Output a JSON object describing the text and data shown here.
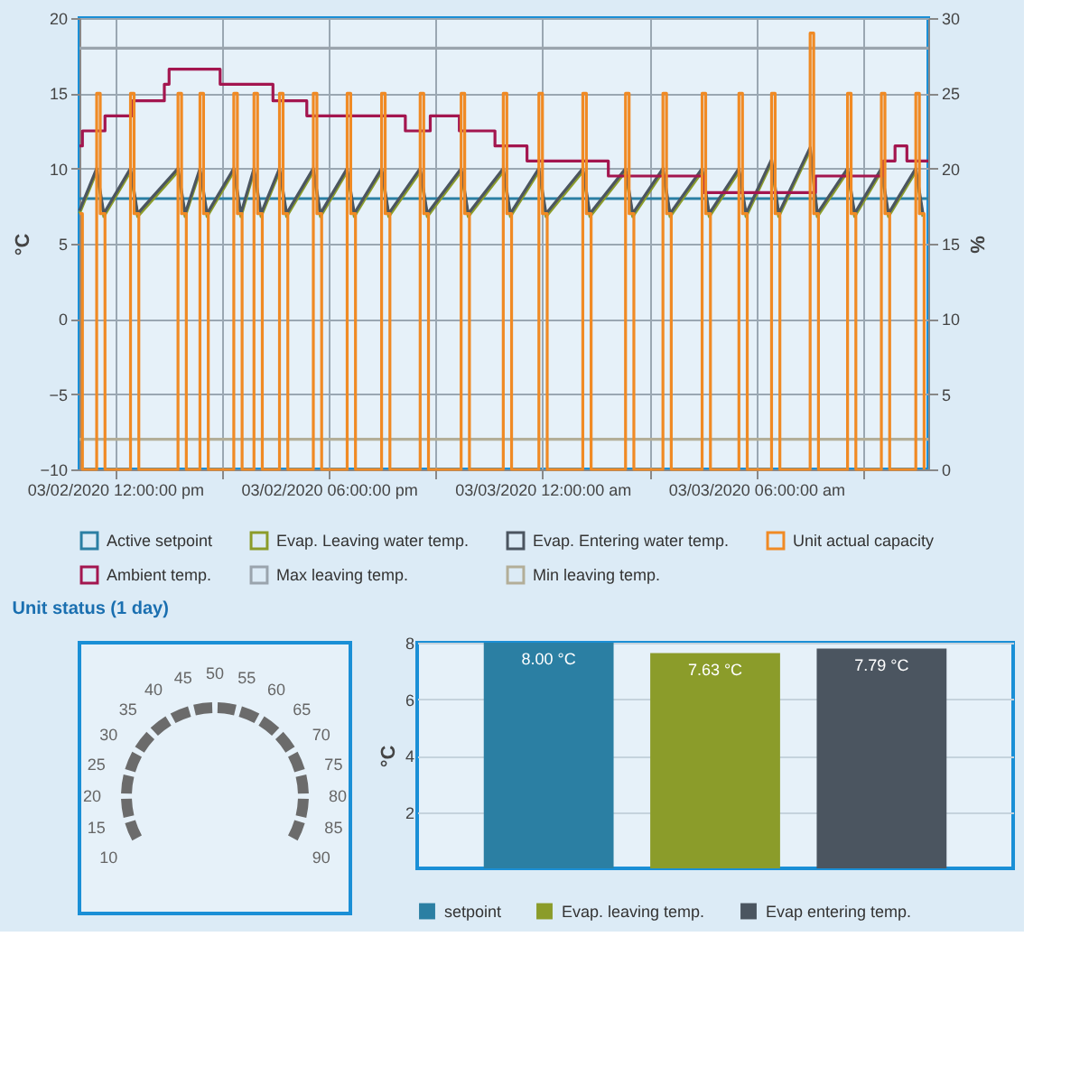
{
  "chart_data": [
    {
      "type": "line",
      "title": "Unit status (1 day)",
      "ylabel": "°C",
      "y2label": "%",
      "xlim": [
        "2020-03-02T11:00",
        "2020-03-03T10:50"
      ],
      "xticks": [
        {
          "value": "2020-03-02T12:00",
          "label": "03/02/2020 12:00:00 pm"
        },
        {
          "value": "2020-03-02T15:00",
          "label": null
        },
        {
          "value": "2020-03-02T18:00",
          "label": "03/02/2020 06:00:00 pm"
        },
        {
          "value": "2020-03-02T21:00",
          "label": null
        },
        {
          "value": "2020-03-03T00:00",
          "label": "03/03/2020 12:00:00 am"
        },
        {
          "value": "2020-03-03T03:00",
          "label": null
        },
        {
          "value": "2020-03-03T06:00",
          "label": "03/03/2020 06:00:00 am"
        },
        {
          "value": "2020-03-03T09:00",
          "label": null
        }
      ],
      "ylim": [
        -10,
        20
      ],
      "yticks": [
        -10,
        -5,
        0,
        5,
        10,
        15,
        20
      ],
      "y2lim": [
        0,
        30
      ],
      "y2ticks": [
        0,
        5,
        10,
        15,
        20,
        25,
        30
      ],
      "grid": true,
      "legend": "bottom",
      "series": [
        {
          "name": "Active setpoint",
          "color": "#2b7fa3",
          "type": "line",
          "x": [
            "2020-03-02T11:00",
            "2020-03-03T10:50"
          ],
          "values": [
            8,
            8
          ]
        },
        {
          "name": "Evap. Leaving water temp.",
          "color": "#8b9c2a",
          "type": "line",
          "x": [
            "2020-03-02T11:00",
            "2020-03-02T11:29",
            "2020-03-02T11:41",
            "2020-03-02T12:26",
            "2020-03-02T12:38",
            "2020-03-02T13:46",
            "2020-03-02T13:58",
            "2020-03-02T14:23",
            "2020-03-02T14:35",
            "2020-03-02T15:20",
            "2020-03-02T15:32",
            "2020-03-02T15:54",
            "2020-03-02T16:06",
            "2020-03-02T16:37",
            "2020-03-02T16:49",
            "2020-03-02T17:34",
            "2020-03-02T17:46",
            "2020-03-02T18:31",
            "2020-03-02T18:43",
            "2020-03-02T19:29",
            "2020-03-02T19:41",
            "2020-03-02T20:34",
            "2020-03-02T20:46",
            "2020-03-02T21:43",
            "2020-03-02T21:55",
            "2020-03-02T22:54",
            "2020-03-02T23:06",
            "2020-03-02T23:54",
            "2020-03-03T00:06",
            "2020-03-03T01:08",
            "2020-03-03T01:20",
            "2020-03-03T02:20",
            "2020-03-03T02:32",
            "2020-03-03T03:23",
            "2020-03-03T03:35",
            "2020-03-03T04:29",
            "2020-03-03T04:41",
            "2020-03-03T05:31",
            "2020-03-03T05:43",
            "2020-03-03T06:26",
            "2020-03-03T06:38",
            "2020-03-03T07:31",
            "2020-03-03T07:43",
            "2020-03-03T08:34",
            "2020-03-03T08:46",
            "2020-03-03T09:31",
            "2020-03-03T09:43",
            "2020-03-03T10:29",
            "2020-03-03T10:41"
          ],
          "values": [
            7.0,
            9.8,
            6.8,
            9.8,
            6.8,
            9.8,
            6.8,
            9.8,
            6.8,
            9.8,
            6.8,
            9.8,
            6.8,
            9.8,
            6.8,
            9.8,
            6.8,
            9.8,
            6.8,
            9.8,
            6.8,
            9.8,
            6.8,
            9.8,
            6.8,
            9.8,
            6.8,
            9.8,
            6.8,
            9.8,
            6.8,
            9.8,
            6.8,
            9.8,
            6.8,
            9.8,
            6.8,
            9.8,
            6.8,
            10.4,
            6.8,
            11.2,
            6.8,
            9.8,
            6.8,
            9.8,
            6.8,
            9.8,
            6.8
          ]
        },
        {
          "name": "Evap. Entering water temp.",
          "color": "#4b5560",
          "type": "line",
          "x": [
            "2020-03-02T11:00",
            "2020-03-02T11:29",
            "2020-03-02T11:41",
            "2020-03-02T12:26",
            "2020-03-02T12:38",
            "2020-03-02T13:46",
            "2020-03-02T13:58",
            "2020-03-02T14:23",
            "2020-03-02T14:35",
            "2020-03-02T15:20",
            "2020-03-02T15:32",
            "2020-03-02T15:54",
            "2020-03-02T16:06",
            "2020-03-02T16:37",
            "2020-03-02T16:49",
            "2020-03-02T17:34",
            "2020-03-02T17:46",
            "2020-03-02T18:31",
            "2020-03-02T18:43",
            "2020-03-02T19:29",
            "2020-03-02T19:41",
            "2020-03-02T20:34",
            "2020-03-02T20:46",
            "2020-03-02T21:43",
            "2020-03-02T21:55",
            "2020-03-02T22:54",
            "2020-03-02T23:06",
            "2020-03-02T23:54",
            "2020-03-03T00:06",
            "2020-03-03T01:08",
            "2020-03-03T01:20",
            "2020-03-03T02:20",
            "2020-03-03T02:32",
            "2020-03-03T03:23",
            "2020-03-03T03:35",
            "2020-03-03T04:29",
            "2020-03-03T04:41",
            "2020-03-03T05:31",
            "2020-03-03T05:43",
            "2020-03-03T06:26",
            "2020-03-03T06:38",
            "2020-03-03T07:31",
            "2020-03-03T07:43",
            "2020-03-03T08:34",
            "2020-03-03T08:46",
            "2020-03-03T09:31",
            "2020-03-03T09:43",
            "2020-03-03T10:29",
            "2020-03-03T10:41"
          ],
          "values": [
            7.2,
            10.0,
            7.0,
            10.0,
            7.0,
            10.0,
            7.0,
            10.0,
            7.0,
            10.0,
            7.0,
            10.0,
            7.0,
            10.0,
            7.0,
            10.0,
            7.0,
            10.0,
            7.0,
            10.0,
            7.0,
            10.0,
            7.0,
            10.0,
            7.0,
            10.0,
            7.0,
            10.0,
            7.0,
            10.0,
            7.0,
            10.0,
            7.0,
            10.0,
            7.0,
            10.0,
            7.0,
            10.0,
            7.0,
            10.6,
            7.0,
            11.4,
            7.0,
            10.0,
            7.0,
            10.0,
            7.0,
            10.0,
            7.0
          ]
        },
        {
          "name": "Unit actual capacity",
          "color": "#f08a24",
          "type": "step",
          "axis": "y2",
          "x": [
            "2020-03-02T11:00",
            "2020-03-02T11:05",
            "2020-03-02T11:29",
            "2020-03-02T11:35",
            "2020-03-02T11:43",
            "2020-03-02T12:26",
            "2020-03-02T12:32",
            "2020-03-02T12:40",
            "2020-03-02T13:46",
            "2020-03-02T13:52",
            "2020-03-02T14:00",
            "2020-03-02T14:23",
            "2020-03-02T14:29",
            "2020-03-02T14:37",
            "2020-03-02T15:20",
            "2020-03-02T15:26",
            "2020-03-02T15:34",
            "2020-03-02T15:54",
            "2020-03-02T16:00",
            "2020-03-02T16:08",
            "2020-03-02T16:37",
            "2020-03-02T16:43",
            "2020-03-02T16:51",
            "2020-03-02T17:34",
            "2020-03-02T17:40",
            "2020-03-02T17:48",
            "2020-03-02T18:31",
            "2020-03-02T18:37",
            "2020-03-02T18:45",
            "2020-03-02T19:29",
            "2020-03-02T19:35",
            "2020-03-02T19:43",
            "2020-03-02T20:34",
            "2020-03-02T20:40",
            "2020-03-02T20:48",
            "2020-03-02T21:43",
            "2020-03-02T21:49",
            "2020-03-02T21:57",
            "2020-03-02T22:54",
            "2020-03-02T23:00",
            "2020-03-02T23:08",
            "2020-03-02T23:54",
            "2020-03-03T00:00",
            "2020-03-03T00:08",
            "2020-03-03T01:08",
            "2020-03-03T01:14",
            "2020-03-03T01:22",
            "2020-03-03T02:20",
            "2020-03-03T02:26",
            "2020-03-03T02:34",
            "2020-03-03T03:23",
            "2020-03-03T03:29",
            "2020-03-03T03:37",
            "2020-03-03T04:29",
            "2020-03-03T04:35",
            "2020-03-03T04:43",
            "2020-03-03T05:31",
            "2020-03-03T05:37",
            "2020-03-03T05:45",
            "2020-03-03T06:26",
            "2020-03-03T06:32",
            "2020-03-03T06:40",
            "2020-03-03T07:31",
            "2020-03-03T07:37",
            "2020-03-03T07:45",
            "2020-03-03T08:34",
            "2020-03-03T08:40",
            "2020-03-03T08:48",
            "2020-03-03T09:31",
            "2020-03-03T09:37",
            "2020-03-03T09:45",
            "2020-03-03T10:29",
            "2020-03-03T10:35",
            "2020-03-03T10:43"
          ],
          "values": [
            17,
            0,
            25,
            17,
            0,
            25,
            17,
            0,
            25,
            17,
            0,
            25,
            17,
            0,
            25,
            17,
            0,
            25,
            17,
            0,
            25,
            17,
            0,
            25,
            17,
            0,
            25,
            17,
            0,
            25,
            17,
            0,
            25,
            17,
            0,
            25,
            17,
            0,
            25,
            17,
            0,
            25,
            17,
            0,
            25,
            17,
            0,
            25,
            17,
            0,
            25,
            17,
            0,
            25,
            17,
            0,
            25,
            17,
            0,
            25,
            17,
            0,
            29,
            17,
            0,
            25,
            17,
            0,
            25,
            17,
            0,
            25,
            17,
            0
          ]
        },
        {
          "name": "Ambient temp.",
          "color": "#a3164f",
          "type": "step",
          "x": [
            "2020-03-02T11:00",
            "2020-03-02T11:05",
            "2020-03-02T11:43",
            "2020-03-02T12:29",
            "2020-03-02T13:23",
            "2020-03-02T13:31",
            "2020-03-02T14:57",
            "2020-03-02T16:26",
            "2020-03-02T17:23",
            "2020-03-02T20:09",
            "2020-03-02T20:51",
            "2020-03-02T21:40",
            "2020-03-02T22:40",
            "2020-03-02T23:34",
            "2020-03-03T01:51",
            "2020-03-03T04:31",
            "2020-03-03T07:40",
            "2020-03-03T09:34",
            "2020-03-03T09:54",
            "2020-03-03T10:14",
            "2020-03-03T10:50"
          ],
          "values": [
            11.5,
            12.5,
            13.5,
            14.5,
            15.6,
            16.6,
            15.6,
            14.5,
            13.5,
            12.5,
            13.5,
            12.5,
            11.5,
            10.5,
            9.5,
            8.4,
            9.5,
            10.5,
            11.5,
            10.5,
            10.5
          ]
        },
        {
          "name": "Max leaving temp.",
          "color": "#9aa4ad",
          "type": "line",
          "x": [
            "2020-03-02T11:00",
            "2020-03-03T10:50"
          ],
          "values": [
            18,
            18
          ]
        },
        {
          "name": "Min leaving temp.",
          "color": "#b3ae98",
          "type": "line",
          "x": [
            "2020-03-02T11:00",
            "2020-03-03T10:50"
          ],
          "values": [
            -8,
            -8
          ]
        }
      ]
    },
    {
      "type": "other",
      "annotations": [
        "10",
        "15",
        "20",
        "25",
        "30",
        "35",
        "40",
        "45",
        "50",
        "55",
        "60",
        "65",
        "70",
        "75",
        "80",
        "85",
        "90"
      ]
    },
    {
      "type": "bar",
      "ylabel": "°C",
      "categories": [
        null,
        null,
        null
      ],
      "ylim": [
        0,
        8
      ],
      "yticks": [
        2,
        4,
        6,
        8
      ],
      "grid": "y",
      "legend": "bottom",
      "tick_labels": "y",
      "series": [
        {
          "name": "setpoint",
          "color": "#2b7fa3",
          "values": [
            8.0,
            null,
            null
          ],
          "value_labels": [
            "8.00 °C",
            null,
            null
          ]
        },
        {
          "name": "Evap. leaving temp.",
          "color": "#8b9c2a",
          "values": [
            null,
            7.63,
            null
          ],
          "value_labels": [
            null,
            "7.63 °C",
            null
          ]
        },
        {
          "name": "Evap entering temp.",
          "color": "#4b5560",
          "values": [
            null,
            null,
            7.79
          ],
          "value_labels": [
            null,
            null,
            "7.79 °C"
          ]
        }
      ]
    }
  ]
}
